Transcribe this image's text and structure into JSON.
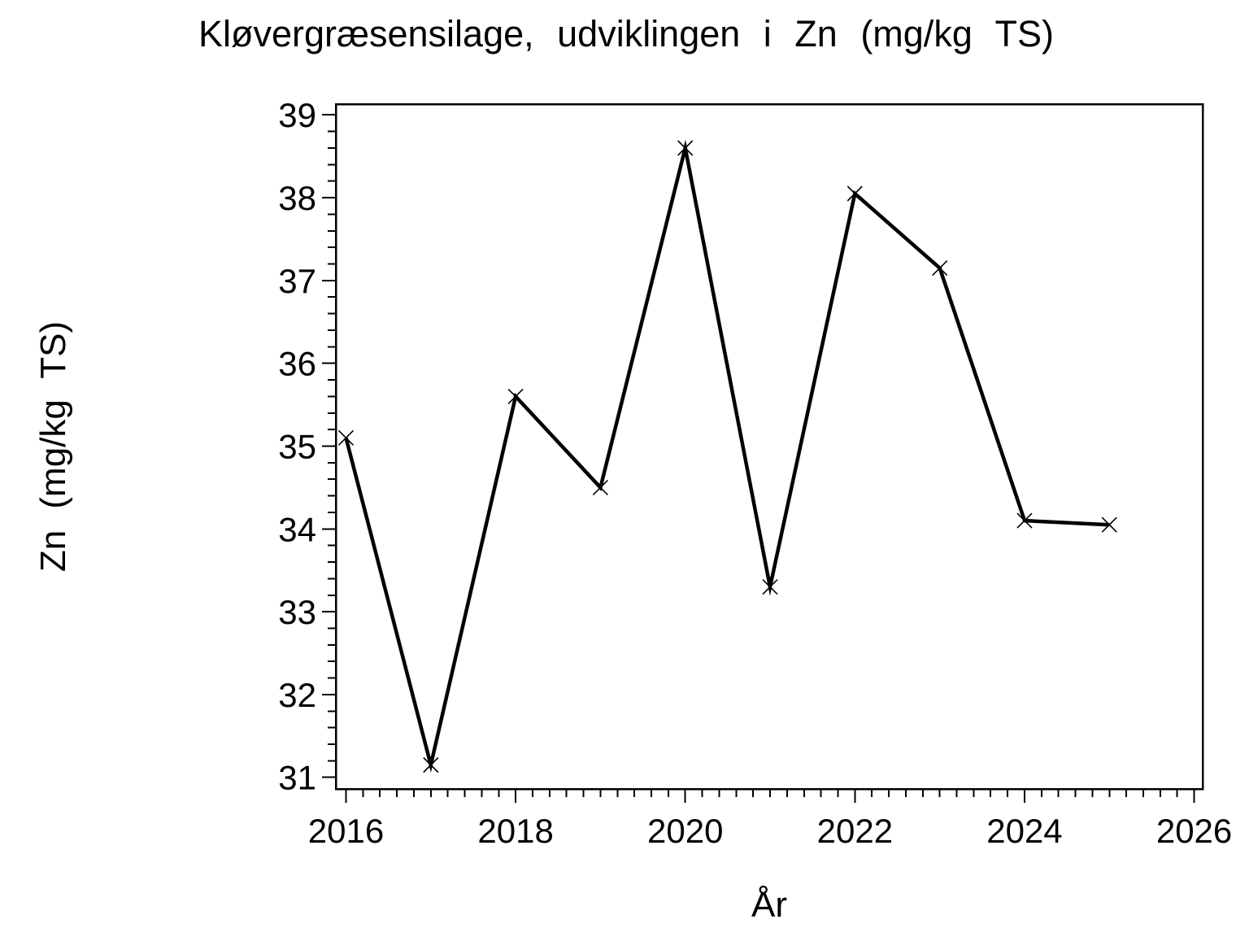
{
  "page": {
    "background_color": "#ffffff",
    "foreground_color": "#000000"
  },
  "chart_data": {
    "type": "line",
    "title": "Kløvergræsensilage, udviklingen i Zn (mg/kg TS)",
    "xlabel": "År",
    "ylabel": "Zn (mg/kg TS)",
    "series": [
      {
        "name": "Zn (mg/kg TS)",
        "x": [
          2016,
          2017,
          2018,
          2019,
          2020,
          2021,
          2022,
          2023,
          2024,
          2025
        ],
        "y": [
          35.1,
          31.15,
          35.6,
          34.5,
          38.6,
          33.3,
          38.05,
          37.15,
          34.1,
          34.05
        ],
        "marker": "x",
        "color": "#000000"
      }
    ],
    "xlim": [
      2015.88,
      2026.1
    ],
    "ylim": [
      30.86,
      39.13
    ],
    "x_major_ticks": [
      2016,
      2018,
      2020,
      2022,
      2024,
      2026
    ],
    "x_minor_step": 0.2,
    "x_minor_range": [
      2016,
      2026
    ],
    "y_major_ticks": [
      31,
      32,
      33,
      34,
      35,
      36,
      37,
      38,
      39
    ],
    "y_minor_step": 0.2,
    "y_minor_range": [
      31,
      39
    ],
    "grid": false,
    "legend": false,
    "frame": true,
    "axis_color": "#000000"
  }
}
